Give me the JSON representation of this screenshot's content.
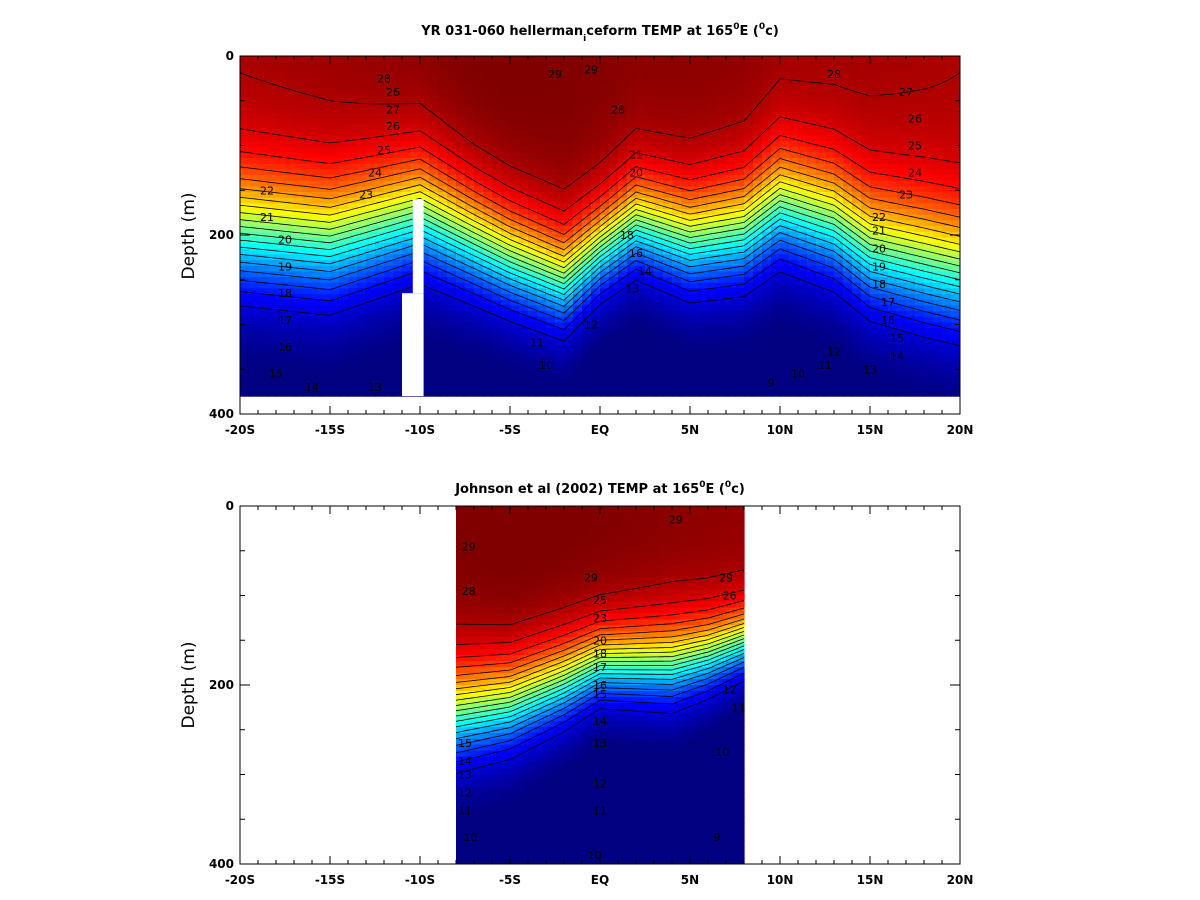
{
  "chart_data": [
    {
      "type": "heatmap",
      "title_main": "YR 031-060 hellerman",
      "title_sub": "i",
      "title_after_sub": "ceform TEMP at 165",
      "title_sup": "0",
      "title_after_sup": "E (",
      "title_unit_sup": "0",
      "title_end": "c)",
      "ylabel": "Depth (m)",
      "xlim": [
        -20,
        20
      ],
      "ylim": [
        400,
        0
      ],
      "x_ticks": [
        -20,
        -15,
        -10,
        -5,
        0,
        5,
        10,
        15,
        20
      ],
      "x_tick_labels": [
        "-20S",
        "-15S",
        "-10S",
        "-5S",
        "EQ",
        "5N",
        "10N",
        "15N",
        "20N"
      ],
      "y_ticks": [
        0,
        200,
        400
      ],
      "y_tick_labels": [
        "0",
        "200",
        "400"
      ],
      "data_extent_x": [
        -20,
        20
      ],
      "data_extent_depth": [
        0,
        380
      ],
      "contour_levels": [
        10,
        11,
        12,
        13,
        14,
        15,
        16,
        17,
        18,
        19,
        20,
        21,
        22,
        23,
        24,
        25,
        26,
        27,
        28,
        29
      ],
      "profiles": [
        {
          "x": -20,
          "sst": 28.8,
          "thermocline_depth": 195,
          "width": 150
        },
        {
          "x": -15,
          "sst": 29.0,
          "thermocline_depth": 205,
          "width": 150
        },
        {
          "x": -10,
          "sst": 29.4,
          "thermocline_depth": 175,
          "width": 140
        },
        {
          "x": -7,
          "sst": 29.6,
          "thermocline_depth": 205,
          "width": 130
        },
        {
          "x": -5,
          "sst": 29.6,
          "thermocline_depth": 225,
          "width": 125
        },
        {
          "x": -2,
          "sst": 29.5,
          "thermocline_depth": 250,
          "width": 120
        },
        {
          "x": 0,
          "sst": 29.4,
          "thermocline_depth": 215,
          "width": 110
        },
        {
          "x": 2,
          "sst": 29.3,
          "thermocline_depth": 185,
          "width": 115
        },
        {
          "x": 5,
          "sst": 29.3,
          "thermocline_depth": 205,
          "width": 125
        },
        {
          "x": 8,
          "sst": 29.2,
          "thermocline_depth": 195,
          "width": 130
        },
        {
          "x": 10,
          "sst": 29.0,
          "thermocline_depth": 165,
          "width": 135
        },
        {
          "x": 13,
          "sst": 28.9,
          "thermocline_depth": 185,
          "width": 140
        },
        {
          "x": 15,
          "sst": 28.8,
          "thermocline_depth": 215,
          "width": 145
        },
        {
          "x": 18,
          "sst": 28.7,
          "thermocline_depth": 230,
          "width": 150
        },
        {
          "x": 20,
          "sst": 28.6,
          "thermocline_depth": 240,
          "width": 150
        }
      ],
      "masks": [
        {
          "x_range": [
            -11,
            -9.8
          ],
          "depth_range": [
            265,
            380
          ]
        },
        {
          "x_range": [
            -10.4,
            -9.8
          ],
          "depth_range": [
            160,
            265
          ]
        }
      ],
      "visible_labels": [
        {
          "text": "29",
          "x": -0.5,
          "depth": 15
        },
        {
          "text": "28",
          "x": -12,
          "depth": 25
        },
        {
          "text": "28",
          "x": 13,
          "depth": 20
        },
        {
          "text": "29",
          "x": -2.5,
          "depth": 20
        },
        {
          "text": "26",
          "x": -11.5,
          "depth": 40
        },
        {
          "text": "27",
          "x": -11.5,
          "depth": 60
        },
        {
          "text": "26",
          "x": -11.5,
          "depth": 78
        },
        {
          "text": "25",
          "x": -12,
          "depth": 105
        },
        {
          "text": "24",
          "x": -12.5,
          "depth": 130
        },
        {
          "text": "23",
          "x": -13,
          "depth": 155
        },
        {
          "text": "22",
          "x": -18.5,
          "depth": 150
        },
        {
          "text": "21",
          "x": -18.5,
          "depth": 180
        },
        {
          "text": "20",
          "x": -17.5,
          "depth": 205
        },
        {
          "text": "19",
          "x": -17.5,
          "depth": 235
        },
        {
          "text": "18",
          "x": -17.5,
          "depth": 265
        },
        {
          "text": "17",
          "x": -17.5,
          "depth": 295
        },
        {
          "text": "16",
          "x": -17.5,
          "depth": 325
        },
        {
          "text": "15",
          "x": -18,
          "depth": 355
        },
        {
          "text": "14",
          "x": -16,
          "depth": 370
        },
        {
          "text": "13",
          "x": -12.5,
          "depth": 370
        },
        {
          "text": "27",
          "x": 17,
          "depth": 40
        },
        {
          "text": "26",
          "x": 17.5,
          "depth": 70
        },
        {
          "text": "25",
          "x": 17.5,
          "depth": 100
        },
        {
          "text": "24",
          "x": 17.5,
          "depth": 130
        },
        {
          "text": "23",
          "x": 17,
          "depth": 155
        },
        {
          "text": "22",
          "x": 15.5,
          "depth": 180
        },
        {
          "text": "21",
          "x": 15.5,
          "depth": 195
        },
        {
          "text": "20",
          "x": 15.5,
          "depth": 215
        },
        {
          "text": "19",
          "x": 15.5,
          "depth": 235
        },
        {
          "text": "18",
          "x": 15.5,
          "depth": 255
        },
        {
          "text": "17",
          "x": 16,
          "depth": 275
        },
        {
          "text": "16",
          "x": 16,
          "depth": 295
        },
        {
          "text": "15",
          "x": 16.5,
          "depth": 315
        },
        {
          "text": "14",
          "x": 16.5,
          "depth": 335
        },
        {
          "text": "13",
          "x": 15,
          "depth": 350
        },
        {
          "text": "12",
          "x": 13,
          "depth": 330
        },
        {
          "text": "11",
          "x": 12.5,
          "depth": 345
        },
        {
          "text": "10",
          "x": 11,
          "depth": 355
        },
        {
          "text": "9",
          "x": 9.5,
          "depth": 365
        },
        {
          "text": "28",
          "x": 1,
          "depth": 60
        },
        {
          "text": "21",
          "x": 2,
          "depth": 110
        },
        {
          "text": "20",
          "x": 2,
          "depth": 130
        },
        {
          "text": "18",
          "x": 1.5,
          "depth": 200
        },
        {
          "text": "16",
          "x": 2,
          "depth": 220
        },
        {
          "text": "14",
          "x": 2.5,
          "depth": 240
        },
        {
          "text": "13",
          "x": 1.8,
          "depth": 260
        },
        {
          "text": "12",
          "x": -0.5,
          "depth": 300
        },
        {
          "text": "11",
          "x": -3.5,
          "depth": 320
        },
        {
          "text": "10",
          "x": -3,
          "depth": 345
        }
      ]
    },
    {
      "type": "heatmap",
      "title_main": "Johnson et al (2002) TEMP at 165",
      "title_sup": "0",
      "title_after_sup": "E (",
      "title_unit_sup": "0",
      "title_end": "c)",
      "ylabel": "Depth (m)",
      "xlim": [
        -20,
        20
      ],
      "ylim": [
        400,
        0
      ],
      "x_ticks": [
        -20,
        -15,
        -10,
        -5,
        0,
        5,
        10,
        15,
        20
      ],
      "x_tick_labels": [
        "-20S",
        "-15S",
        "-10S",
        "-5S",
        "EQ",
        "5N",
        "10N",
        "15N",
        "20N"
      ],
      "y_ticks": [
        0,
        200,
        400
      ],
      "y_tick_labels": [
        "0",
        "200",
        "400"
      ],
      "data_extent_x": [
        -8,
        8
      ],
      "data_extent_depth": [
        0,
        400
      ],
      "contour_levels": [
        10,
        11,
        12,
        13,
        14,
        15,
        16,
        17,
        18,
        19,
        20,
        21,
        22,
        23,
        24,
        25,
        26,
        27,
        28,
        29
      ],
      "profiles": [
        {
          "x": -8,
          "sst": 29.6,
          "thermocline_depth": 230,
          "width": 120
        },
        {
          "x": -5,
          "sst": 29.7,
          "thermocline_depth": 220,
          "width": 110
        },
        {
          "x": -2,
          "sst": 29.6,
          "thermocline_depth": 195,
          "width": 100
        },
        {
          "x": 0,
          "sst": 29.5,
          "thermocline_depth": 175,
          "width": 90
        },
        {
          "x": 2,
          "sst": 29.4,
          "thermocline_depth": 175,
          "width": 95
        },
        {
          "x": 4,
          "sst": 29.3,
          "thermocline_depth": 175,
          "width": 100
        },
        {
          "x": 6,
          "sst": 29.2,
          "thermocline_depth": 165,
          "width": 90
        },
        {
          "x": 8,
          "sst": 29.1,
          "thermocline_depth": 150,
          "width": 80
        }
      ],
      "visible_labels": [
        {
          "text": "29",
          "x": -7.3,
          "depth": 45
        },
        {
          "text": "29",
          "x": 4.2,
          "depth": 15
        },
        {
          "text": "28",
          "x": -7.3,
          "depth": 95
        },
        {
          "text": "29",
          "x": 7,
          "depth": 80
        },
        {
          "text": "26",
          "x": 7.2,
          "depth": 100
        },
        {
          "text": "29",
          "x": -0.5,
          "depth": 80
        },
        {
          "text": "25",
          "x": 0,
          "depth": 105
        },
        {
          "text": "23",
          "x": 0,
          "depth": 125
        },
        {
          "text": "20",
          "x": 0,
          "depth": 150
        },
        {
          "text": "18",
          "x": 0,
          "depth": 165
        },
        {
          "text": "17",
          "x": 0,
          "depth": 180
        },
        {
          "text": "16",
          "x": 0,
          "depth": 200
        },
        {
          "text": "15",
          "x": 0,
          "depth": 210
        },
        {
          "text": "14",
          "x": 0,
          "depth": 240
        },
        {
          "text": "13",
          "x": 0,
          "depth": 265
        },
        {
          "text": "12",
          "x": 0,
          "depth": 310
        },
        {
          "text": "11",
          "x": 0,
          "depth": 340
        },
        {
          "text": "10",
          "x": -0.3,
          "depth": 390
        },
        {
          "text": "15",
          "x": -7.5,
          "depth": 265
        },
        {
          "text": "14",
          "x": -7.5,
          "depth": 285
        },
        {
          "text": "13",
          "x": -7.5,
          "depth": 300
        },
        {
          "text": "12",
          "x": -7.5,
          "depth": 320
        },
        {
          "text": "11",
          "x": -7.5,
          "depth": 340
        },
        {
          "text": "10",
          "x": -7.2,
          "depth": 370
        },
        {
          "text": "12",
          "x": 7.2,
          "depth": 205
        },
        {
          "text": "11",
          "x": 7.7,
          "depth": 225
        },
        {
          "text": "10",
          "x": 6.8,
          "depth": 275
        },
        {
          "text": "9",
          "x": 6.5,
          "depth": 370
        }
      ]
    }
  ]
}
